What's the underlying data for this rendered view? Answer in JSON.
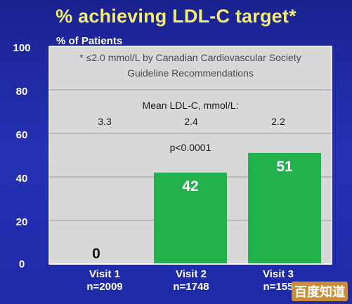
{
  "chart_data": {
    "type": "bar",
    "title": "% achieving LDL-C target*",
    "ylabel": "% of Patients",
    "ylim": [
      0,
      100
    ],
    "yticks": [
      "100",
      "80",
      "60",
      "40",
      "20",
      "0"
    ],
    "categories": [
      "Visit 1",
      "Visit 2",
      "Visit 3"
    ],
    "n_labels": [
      "n=2009",
      "n=1748",
      "n=155"
    ],
    "values": [
      0,
      42,
      51
    ],
    "value_labels": [
      "0",
      "42",
      "51"
    ],
    "footnote": [
      "* ≤2.0 mmol/L by Canadian Cardiovascular Society",
      "Guideline Recommendations"
    ],
    "mean_ldl_title": "Mean LDL-C, mmol/L:",
    "mean_ldl_values": [
      "3.3",
      "2.4",
      "2.2"
    ],
    "p_value": "p<0.0001",
    "bar_color": "#22b14c",
    "plot_bg": "#d8d8d8",
    "grid": true
  },
  "watermark": "百度知道"
}
